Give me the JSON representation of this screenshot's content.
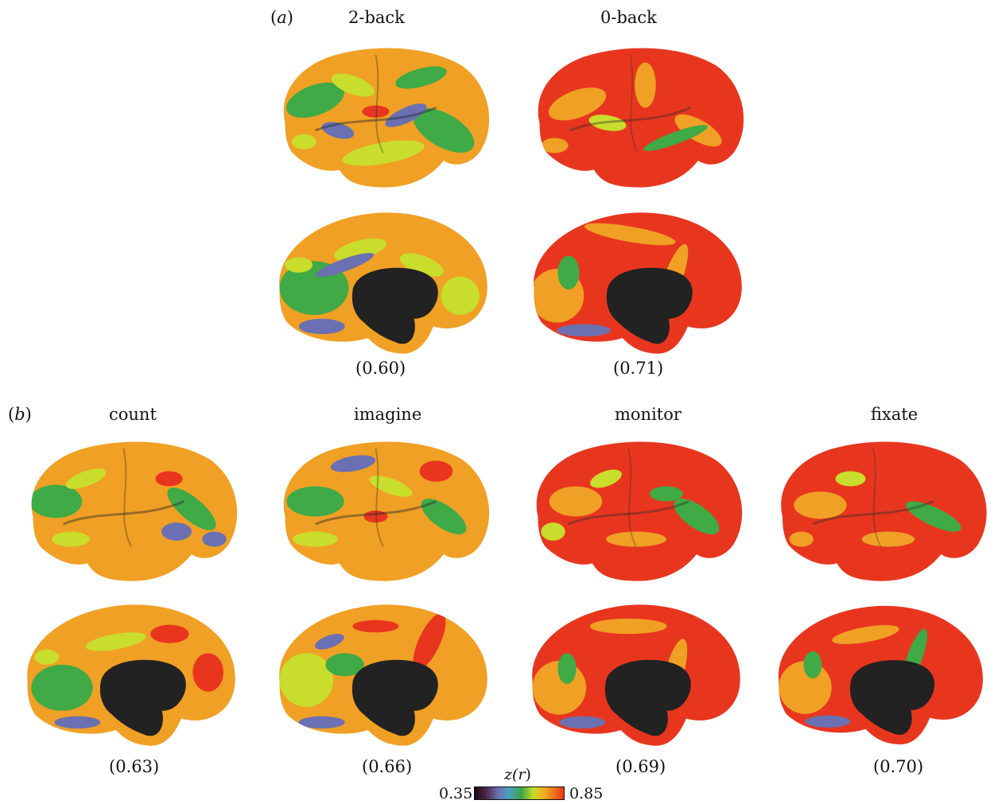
{
  "figure": {
    "panel_a": {
      "label_open": "(",
      "label_letter": "a",
      "label_close": ")",
      "columns": [
        {
          "title": "2-back",
          "value": "(0.60)"
        },
        {
          "title": "0-back",
          "value": "(0.71)"
        }
      ]
    },
    "panel_b": {
      "label_open": "(",
      "label_letter": "b",
      "label_close": ")",
      "columns": [
        {
          "title": "count",
          "value": "(0.63)"
        },
        {
          "title": "imagine",
          "value": "(0.66)"
        },
        {
          "title": "monitor",
          "value": "(0.69)"
        },
        {
          "title": "fixate",
          "value": "(0.70)"
        }
      ]
    },
    "colorbar": {
      "title_prefix": "z(",
      "title_var": "r",
      "title_suffix": ")",
      "min_label": "0.35",
      "max_label": "0.85",
      "colors": [
        "#1d0a14",
        "#4b2244",
        "#6a6fb0",
        "#3ba44a",
        "#c8dc2a",
        "#f5a31c",
        "#e8351d"
      ]
    }
  }
}
